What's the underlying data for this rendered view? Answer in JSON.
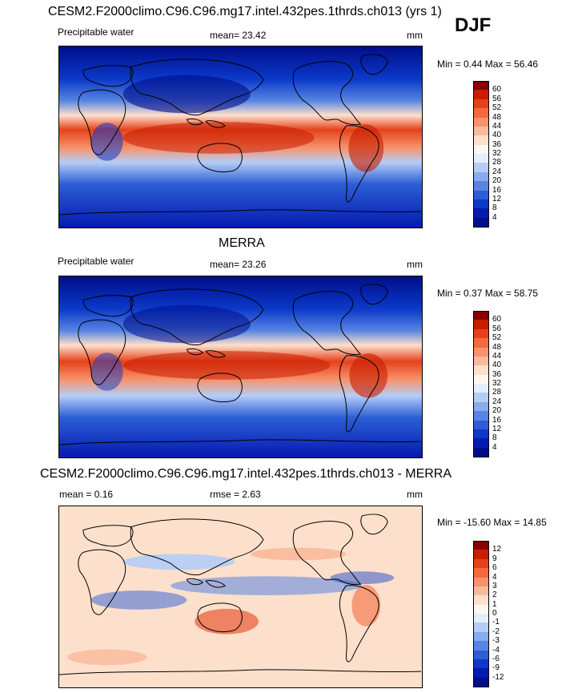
{
  "season": "DJF",
  "panels": [
    {
      "id": "model",
      "header": "CESM2.F2000climo.C96.C96.mg17.intel.432pes.1thrds.ch013 (yrs 1)",
      "left_label": "Precipitable water",
      "stat_label": "mean=",
      "stat_value": "23.42",
      "units": "mm",
      "range_text": "Min =   0.44 Max =  56.46",
      "colorbar_labels": [
        "60",
        "56",
        "52",
        "48",
        "44",
        "40",
        "36",
        "32",
        "28",
        "24",
        "20",
        "16",
        "12",
        "8",
        "4"
      ],
      "colorbar_colors": [
        "#870000",
        "#c81d00",
        "#e5421c",
        "#f26a3e",
        "#f7936c",
        "#fab99b",
        "#fde0cc",
        "#fff6ef",
        "#e3eefc",
        "#b4cdf6",
        "#86abee",
        "#5885e2",
        "#2d5ed6",
        "#0b39c9",
        "#041bb0",
        "#000e8a"
      ]
    },
    {
      "id": "obs",
      "header": "MERRA",
      "left_label": "Precipitable water",
      "stat_label": "mean=",
      "stat_value": "23.26",
      "units": "mm",
      "range_text": "Min =   0.37 Max =  58.75",
      "colorbar_labels": [
        "60",
        "56",
        "52",
        "48",
        "44",
        "40",
        "36",
        "32",
        "28",
        "24",
        "20",
        "16",
        "12",
        "8",
        "4"
      ],
      "colorbar_colors": [
        "#870000",
        "#c81d00",
        "#e5421c",
        "#f26a3e",
        "#f7936c",
        "#fab99b",
        "#fde0cc",
        "#fff6ef",
        "#e3eefc",
        "#b4cdf6",
        "#86abee",
        "#5885e2",
        "#2d5ed6",
        "#0b39c9",
        "#041bb0",
        "#000e8a"
      ]
    },
    {
      "id": "diff",
      "header": "CESM2.F2000climo.C96.C96.mg17.intel.432pes.1thrds.ch013 - MERRA",
      "left_label": "mean =   0.16",
      "stat_label": "rmse =",
      "stat_value": "2.63",
      "units": "mm",
      "range_text": "Min = -15.60 Max =  14.85",
      "colorbar_labels": [
        "12",
        "9",
        "6",
        "4",
        "3",
        "2",
        "1",
        "0",
        "-1",
        "-2",
        "-3",
        "-4",
        "-6",
        "-9",
        "-12"
      ],
      "colorbar_colors": [
        "#870000",
        "#c81d00",
        "#e5421c",
        "#f26a3e",
        "#f7936c",
        "#fab99b",
        "#fde0cc",
        "#fff6ef",
        "#e3eefc",
        "#b4cdf6",
        "#86abee",
        "#5885e2",
        "#2d5ed6",
        "#0b39c9",
        "#041bb0",
        "#000e8a"
      ]
    }
  ]
}
